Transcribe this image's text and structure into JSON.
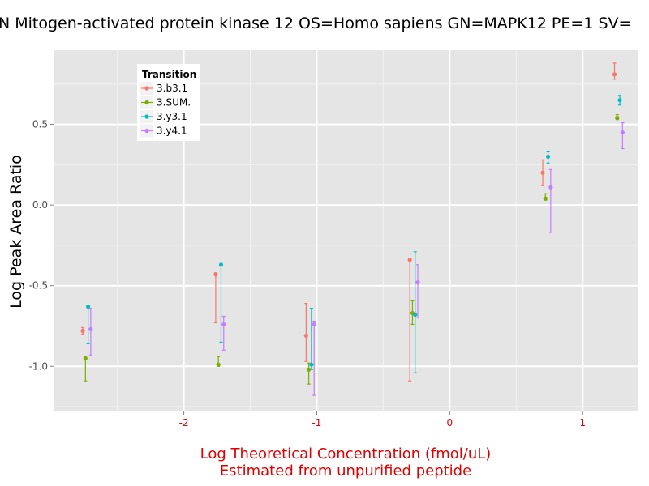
{
  "chart_data": {
    "type": "scatter",
    "title": "N Mitogen-activated protein kinase 12 OS=Homo sapiens GN=MAPK12 PE=1 SV=",
    "xlabel_lines": [
      "Log Theoretical Concentration (fmol/uL)",
      "Estimated from unpurified peptide"
    ],
    "ylabel": "Log Peak Area Ratio",
    "xlim": [
      -2.98,
      1.42
    ],
    "ylim": [
      -1.28,
      0.96
    ],
    "x_ticks": [
      -2,
      -1,
      0,
      1
    ],
    "x_tick_labels": [
      "-2",
      "-1",
      "0",
      "1"
    ],
    "y_ticks": [
      -1.0,
      -0.5,
      0.0,
      0.5
    ],
    "y_tick_labels": [
      "-1.0",
      "-0.5",
      "0.0",
      "0.5"
    ],
    "grid": true,
    "colors": {
      "panel": "#e5e5e5",
      "grid_major": "#ffffff",
      "grid_minor": "#f2f2f2",
      "axis_text_x": "#e00000",
      "axis_title_x": "#e00000",
      "tick_mark": "#7f7f7f"
    },
    "legend": {
      "title": "Transition",
      "position": "top-left",
      "items": [
        {
          "label": "3.b3.1",
          "color": "#F8766D"
        },
        {
          "label": "3.SUM.",
          "color": "#7CAE00"
        },
        {
          "label": "3.y3.1",
          "color": "#00BFC4"
        },
        {
          "label": "3.y4.1",
          "color": "#C77CFF"
        }
      ]
    },
    "series": [
      {
        "name": "3.b3.1",
        "color": "#F8766D",
        "points": [
          {
            "x": -2.76,
            "y": -0.78,
            "low": -0.8,
            "high": -0.76
          },
          {
            "x": -1.76,
            "y": -0.43,
            "low": -0.73,
            "high": -0.42
          },
          {
            "x": -1.08,
            "y": -0.81,
            "low": -0.97,
            "high": -0.61
          },
          {
            "x": -0.3,
            "y": -0.34,
            "low": -1.09,
            "high": -0.33
          },
          {
            "x": 0.7,
            "y": 0.2,
            "low": 0.12,
            "high": 0.28
          },
          {
            "x": 1.24,
            "y": 0.81,
            "low": 0.78,
            "high": 0.88
          }
        ]
      },
      {
        "name": "3.SUM.",
        "color": "#7CAE00",
        "points": [
          {
            "x": -2.74,
            "y": -0.95,
            "low": -1.09,
            "high": -0.95
          },
          {
            "x": -1.74,
            "y": -0.99,
            "low": -1.0,
            "high": -0.94
          },
          {
            "x": -1.06,
            "y": -1.02,
            "low": -1.11,
            "high": -0.98
          },
          {
            "x": -0.28,
            "y": -0.67,
            "low": -0.74,
            "high": -0.59
          },
          {
            "x": 0.72,
            "y": 0.04,
            "low": 0.03,
            "high": 0.07
          },
          {
            "x": 1.26,
            "y": 0.54,
            "low": 0.53,
            "high": 0.56
          }
        ]
      },
      {
        "name": "3.y3.1",
        "color": "#00BFC4",
        "points": [
          {
            "x": -2.72,
            "y": -0.63,
            "low": -0.86,
            "high": -0.63
          },
          {
            "x": -1.72,
            "y": -0.37,
            "low": -0.85,
            "high": -0.37
          },
          {
            "x": -1.04,
            "y": -0.99,
            "low": -1.02,
            "high": -0.64
          },
          {
            "x": -0.26,
            "y": -0.68,
            "low": -1.04,
            "high": -0.29
          },
          {
            "x": 0.74,
            "y": 0.3,
            "low": 0.26,
            "high": 0.33
          },
          {
            "x": 1.28,
            "y": 0.65,
            "low": 0.62,
            "high": 0.68
          }
        ]
      },
      {
        "name": "3.y4.1",
        "color": "#C77CFF",
        "points": [
          {
            "x": -2.7,
            "y": -0.77,
            "low": -0.93,
            "high": -0.64
          },
          {
            "x": -1.7,
            "y": -0.74,
            "low": -0.9,
            "high": -0.69
          },
          {
            "x": -1.02,
            "y": -0.74,
            "low": -1.18,
            "high": -0.72
          },
          {
            "x": -0.24,
            "y": -0.48,
            "low": -0.7,
            "high": -0.37
          },
          {
            "x": 0.76,
            "y": 0.11,
            "low": -0.17,
            "high": 0.22
          },
          {
            "x": 1.3,
            "y": 0.45,
            "low": 0.35,
            "high": 0.51
          }
        ]
      }
    ]
  }
}
